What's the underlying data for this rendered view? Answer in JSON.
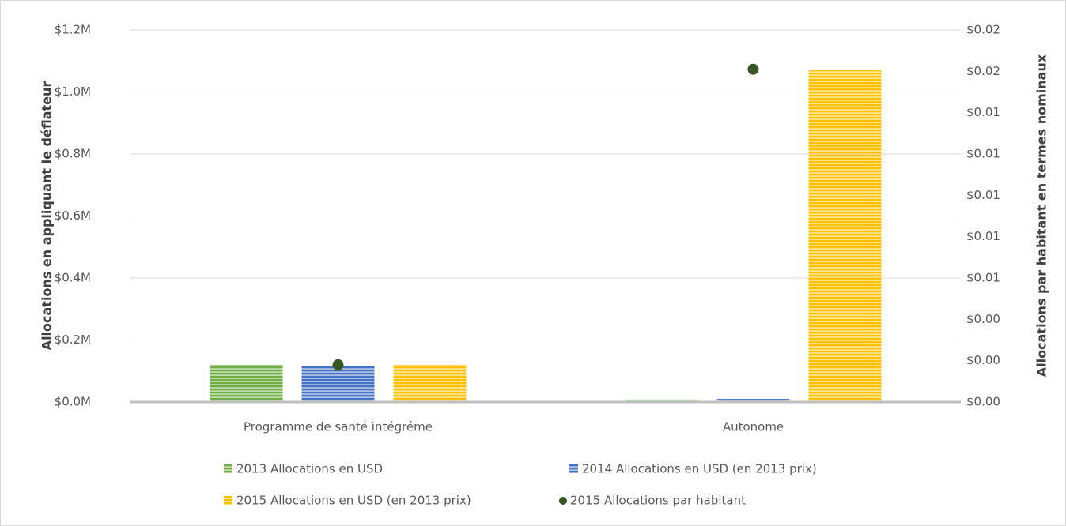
{
  "chart_data": {
    "type": "bar",
    "y_label": "Allocations en appliquant le déflateur",
    "y2_label": "Allocations par habitant en termes nominaux",
    "categories": [
      "Programme de santé intégréme",
      "Autonome"
    ],
    "series": [
      {
        "name": "2013 Allocations en USD",
        "color": "#70ad47",
        "values": [
          120000,
          8000
        ]
      },
      {
        "name": "2014 Allocations en USD (en 2013 prix)",
        "color": "#4472c4",
        "values": [
          117000,
          10000
        ]
      },
      {
        "name": "2015 Allocations en USD (en 2013 prix)",
        "color": "#ffc000",
        "values": [
          120000,
          1070000
        ]
      },
      {
        "name": "2015 Allocations par habitant",
        "color": "#375623",
        "type": "scatter",
        "axis": "y2",
        "values": [
          0.0018,
          0.0161
        ]
      }
    ],
    "ylim": [
      0,
      1200000
    ],
    "yticks": [
      {
        "value": 0,
        "label": "$0.0M"
      },
      {
        "value": 200000,
        "label": "$0.2M"
      },
      {
        "value": 400000,
        "label": "$0.4M"
      },
      {
        "value": 600000,
        "label": "$0.6M"
      },
      {
        "value": 800000,
        "label": "$0.8M"
      },
      {
        "value": 1000000,
        "label": "$1.0M"
      },
      {
        "value": 1200000,
        "label": "$1.2M"
      }
    ],
    "y2lim": [
      0,
      0.018
    ],
    "y2ticks": [
      {
        "value": 0,
        "label": "$0.00"
      },
      {
        "value": 0.002,
        "label": "$0.00"
      },
      {
        "value": 0.004,
        "label": "$0.00"
      },
      {
        "value": 0.006,
        "label": "$0.01"
      },
      {
        "value": 0.008,
        "label": "$0.01"
      },
      {
        "value": 0.01,
        "label": "$0.01"
      },
      {
        "value": 0.012,
        "label": "$0.01"
      },
      {
        "value": 0.014,
        "label": "$0.01"
      },
      {
        "value": 0.016,
        "label": "$0.02"
      },
      {
        "value": 0.018,
        "label": "$0.02"
      }
    ],
    "grid": true,
    "legend": "bottom"
  }
}
